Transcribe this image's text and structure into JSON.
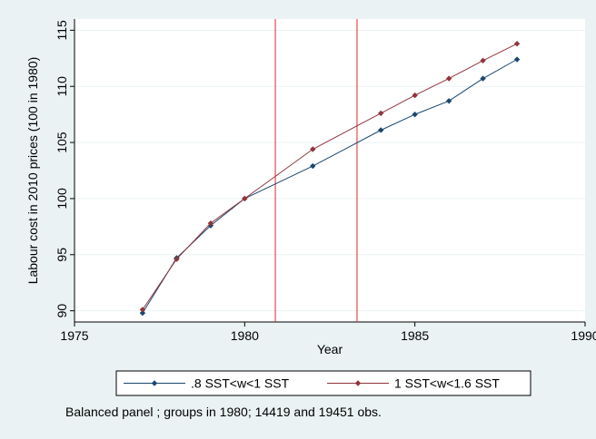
{
  "chart_data": {
    "type": "line",
    "title": "",
    "xlabel": "Year",
    "ylabel": "Labour cost in 2010 prices (100 in 1980)",
    "xlim": [
      1975,
      1990
    ],
    "ylim": [
      89,
      116
    ],
    "x_ticks": [
      1975,
      1980,
      1985,
      1990
    ],
    "y_ticks": [
      90,
      95,
      100,
      105,
      110,
      115
    ],
    "grid": true,
    "legend_position": "bottom",
    "x": [
      1977,
      1978,
      1979,
      1980,
      1982,
      1984,
      1985,
      1986,
      1987,
      1988
    ],
    "series": [
      {
        "name": ".8 SST<w<1 SST",
        "color": "#1a476f",
        "values": [
          89.8,
          94.7,
          97.6,
          100.0,
          102.9,
          106.1,
          107.5,
          108.7,
          110.7,
          112.4
        ]
      },
      {
        "name": "1 SST<w<1.6 SST",
        "color": "#90353b",
        "values": [
          90.1,
          94.6,
          97.8,
          100.0,
          104.4,
          107.6,
          109.2,
          110.7,
          112.3,
          113.8
        ]
      }
    ],
    "vertical_lines": [
      1980.9,
      1983.3
    ],
    "vertical_line_color": "#e8242b",
    "note": "Balanced panel ; groups in 1980; 14419 and 19451 obs."
  }
}
